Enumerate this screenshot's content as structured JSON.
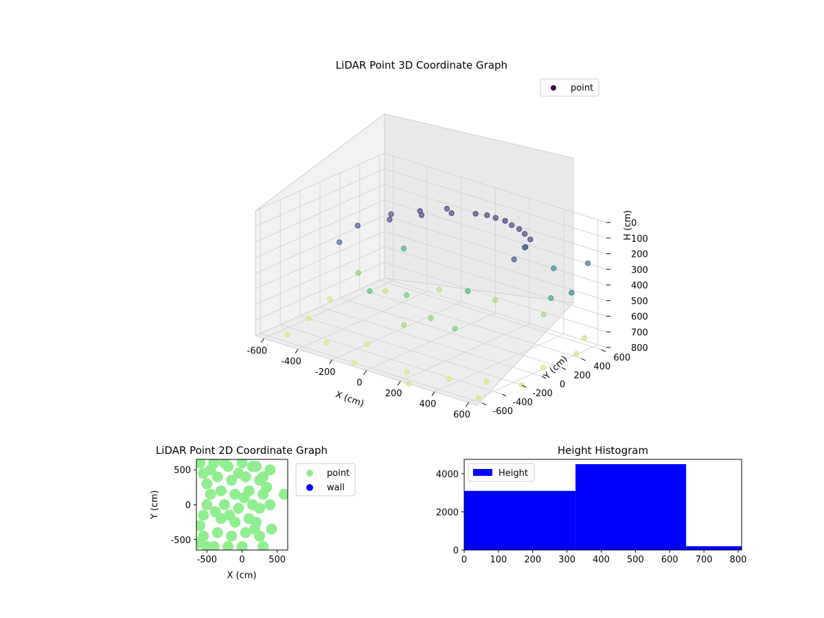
{
  "figure": {
    "background": "#ffffff"
  },
  "chart_data": [
    {
      "type": "scatter",
      "subtype": "3d",
      "title": "LiDAR Point 3D Coordinate Graph",
      "xlabel": "X (cm)",
      "ylabel": "Y (cm)",
      "zlabel": "H (cm)",
      "xlim": [
        -650,
        650
      ],
      "ylim": [
        -650,
        650
      ],
      "zlim": [
        800,
        0
      ],
      "xticks": [
        -600,
        -400,
        -200,
        0,
        200,
        400,
        600
      ],
      "yticks": [
        -600,
        -400,
        -200,
        0,
        200,
        400,
        600
      ],
      "zticks": [
        0,
        100,
        200,
        300,
        400,
        500,
        600,
        700,
        800
      ],
      "colormap": "viridis",
      "legend": {
        "placement": "top-right",
        "entries": [
          {
            "label": "point",
            "color": "#440154"
          }
        ]
      },
      "series": [
        {
          "name": "point",
          "points": [
            {
              "x": -400,
              "y": -50,
              "h": 180
            },
            {
              "x": -300,
              "y": 100,
              "h": 150
            },
            {
              "x": -200,
              "y": 250,
              "h": 130
            },
            {
              "x": -100,
              "y": 380,
              "h": 120
            },
            {
              "x": 0,
              "y": 450,
              "h": 110
            },
            {
              "x": 100,
              "y": 480,
              "h": 110
            },
            {
              "x": 200,
              "y": 470,
              "h": 120
            },
            {
              "x": 300,
              "y": 430,
              "h": 130
            },
            {
              "x": -420,
              "y": -200,
              "h": 250
            },
            {
              "x": -350,
              "y": 200,
              "h": 160
            },
            {
              "x": -250,
              "y": 320,
              "h": 140
            },
            {
              "x": -150,
              "y": 420,
              "h": 120
            },
            {
              "x": 50,
              "y": 480,
              "h": 110
            },
            {
              "x": 150,
              "y": 490,
              "h": 115
            },
            {
              "x": 250,
              "y": 460,
              "h": 125
            },
            {
              "x": 350,
              "y": 400,
              "h": 140
            },
            {
              "x": 380,
              "y": 300,
              "h": 150
            },
            {
              "x": 400,
              "y": 150,
              "h": 180
            },
            {
              "x": -200,
              "y": -300,
              "h": 800
            },
            {
              "x": -350,
              "y": -450,
              "h": 800
            },
            {
              "x": 150,
              "y": -500,
              "h": 800
            },
            {
              "x": 350,
              "y": -420,
              "h": 800
            },
            {
              "x": 500,
              "y": -300,
              "h": 800
            },
            {
              "x": 600,
              "y": 100,
              "h": 790
            },
            {
              "x": 620,
              "y": 400,
              "h": 780
            },
            {
              "x": 550,
              "y": 600,
              "h": 760
            },
            {
              "x": -600,
              "y": -200,
              "h": 800
            },
            {
              "x": -650,
              "y": 100,
              "h": 780
            },
            {
              "x": -500,
              "y": 400,
              "h": 760
            },
            {
              "x": -300,
              "y": 600,
              "h": 740
            },
            {
              "x": 0,
              "y": 650,
              "h": 720
            },
            {
              "x": 300,
              "y": 620,
              "h": 700
            },
            {
              "x": -100,
              "y": -600,
              "h": 800
            },
            {
              "x": 250,
              "y": -650,
              "h": 800
            },
            {
              "x": 600,
              "y": -550,
              "h": 800
            },
            {
              "x": 650,
              "y": -200,
              "h": 800
            },
            {
              "x": -550,
              "y": -500,
              "h": 800
            },
            {
              "x": 500,
              "y": 350,
              "h": 450
            },
            {
              "x": 400,
              "y": 550,
              "h": 350
            },
            {
              "x": -450,
              "y": 500,
              "h": 500
            },
            {
              "x": -600,
              "y": 300,
              "h": 650
            },
            {
              "x": 200,
              "y": 600,
              "h": 300
            },
            {
              "x": 600,
              "y": 550,
              "h": 250
            },
            {
              "x": 650,
              "y": 300,
              "h": 350
            },
            {
              "x": -200,
              "y": 100,
              "h": 600
            },
            {
              "x": 0,
              "y": 0,
              "h": 650
            },
            {
              "x": 100,
              "y": 200,
              "h": 500
            },
            {
              "x": -100,
              "y": -100,
              "h": 700
            },
            {
              "x": 200,
              "y": -100,
              "h": 620
            },
            {
              "x": -300,
              "y": -100,
              "h": 550
            }
          ]
        }
      ]
    },
    {
      "type": "scatter",
      "title": "LiDAR Point 2D Coordinate Graph",
      "xlabel": "X (cm)",
      "ylabel": "Y (cm)",
      "xlim": [
        -650,
        650
      ],
      "ylim": [
        -650,
        650
      ],
      "xticks": [
        -500,
        0,
        500
      ],
      "yticks": [
        -500,
        0,
        500
      ],
      "legend": {
        "placement": "outside-right"
      },
      "series": [
        {
          "name": "point",
          "color": "#90ee90",
          "points": [
            [
              -600,
              600
            ],
            [
              -550,
              450
            ],
            [
              -500,
              300
            ],
            [
              -450,
              150
            ],
            [
              -500,
              0
            ],
            [
              -550,
              -150
            ],
            [
              -600,
              -300
            ],
            [
              -550,
              -450
            ],
            [
              -500,
              -600
            ],
            [
              -400,
              600
            ],
            [
              -350,
              400
            ],
            [
              -300,
              200
            ],
            [
              -250,
              0
            ],
            [
              -300,
              -200
            ],
            [
              -350,
              -400
            ],
            [
              -400,
              -600
            ],
            [
              -200,
              550
            ],
            [
              -150,
              350
            ],
            [
              -100,
              150
            ],
            [
              -50,
              -50
            ],
            [
              -100,
              -250
            ],
            [
              -150,
              -450
            ],
            [
              -200,
              -600
            ],
            [
              0,
              600
            ],
            [
              50,
              400
            ],
            [
              100,
              200
            ],
            [
              150,
              0
            ],
            [
              100,
              -200
            ],
            [
              50,
              -400
            ],
            [
              0,
              -600
            ],
            [
              200,
              550
            ],
            [
              250,
              350
            ],
            [
              300,
              150
            ],
            [
              250,
              -50
            ],
            [
              200,
              -250
            ],
            [
              250,
              -450
            ],
            [
              300,
              -600
            ],
            [
              400,
              500
            ],
            [
              350,
              250
            ],
            [
              400,
              0
            ],
            [
              420,
              -350
            ],
            [
              600,
              150
            ],
            [
              -620,
              -550
            ],
            [
              -450,
              500
            ],
            [
              -250,
              600
            ],
            [
              -50,
              450
            ],
            [
              150,
              550
            ],
            [
              300,
              400
            ],
            [
              -380,
              -100
            ],
            [
              -180,
              -150
            ],
            [
              30,
              100
            ],
            [
              180,
              -350
            ]
          ]
        },
        {
          "name": "wall",
          "color": "#0000ff",
          "points": []
        }
      ]
    },
    {
      "type": "bar",
      "subtype": "histogram",
      "title": "Height Histogram",
      "xlim": [
        0,
        810
      ],
      "ylim": [
        0,
        4750
      ],
      "xticks": [
        0,
        100,
        200,
        300,
        400,
        500,
        600,
        700,
        800
      ],
      "yticks": [
        0,
        2000,
        4000
      ],
      "legend": {
        "placement": "top-left"
      },
      "series": [
        {
          "name": "Height",
          "color": "#0000ff",
          "bins": [
            {
              "start": 0,
              "end": 325,
              "count": 3100
            },
            {
              "start": 325,
              "end": 648,
              "count": 4500
            },
            {
              "start": 648,
              "end": 810,
              "count": 200
            }
          ]
        }
      ]
    }
  ]
}
